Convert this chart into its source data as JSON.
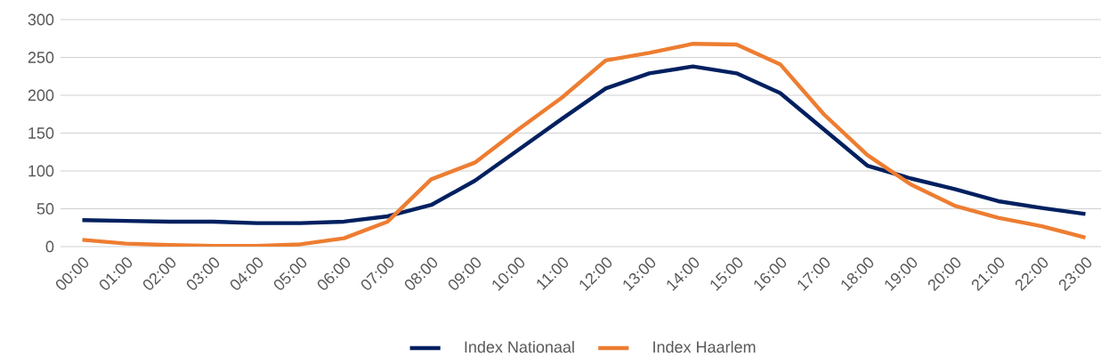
{
  "chart_data": {
    "type": "line",
    "categories": [
      "00:00",
      "01:00",
      "02:00",
      "03:00",
      "04:00",
      "05:00",
      "06:00",
      "07:00",
      "08:00",
      "09:00",
      "10:00",
      "11:00",
      "12:00",
      "13:00",
      "14:00",
      "15:00",
      "16:00",
      "17:00",
      "18:00",
      "19:00",
      "20:00",
      "21:00",
      "22:00",
      "23:00"
    ],
    "series": [
      {
        "name": "Index Nationaal",
        "color": "#002060",
        "values": [
          35,
          34,
          33,
          33,
          31,
          31,
          33,
          40,
          55,
          87,
          128,
          169,
          209,
          229,
          238,
          229,
          203,
          155,
          107,
          90,
          76,
          60,
          51,
          43
        ]
      },
      {
        "name": "Index Haarlem",
        "color": "#ed7d31",
        "values": [
          9,
          4,
          2,
          1,
          1,
          3,
          11,
          33,
          89,
          111,
          155,
          197,
          246,
          256,
          268,
          267,
          241,
          175,
          121,
          82,
          54,
          38,
          27,
          12
        ]
      }
    ],
    "ylim": [
      0,
      300
    ],
    "yticks": [
      0,
      50,
      100,
      150,
      200,
      250,
      300
    ],
    "grid": "y",
    "legend": "bottom",
    "marker": "none",
    "line_style": "solid"
  }
}
